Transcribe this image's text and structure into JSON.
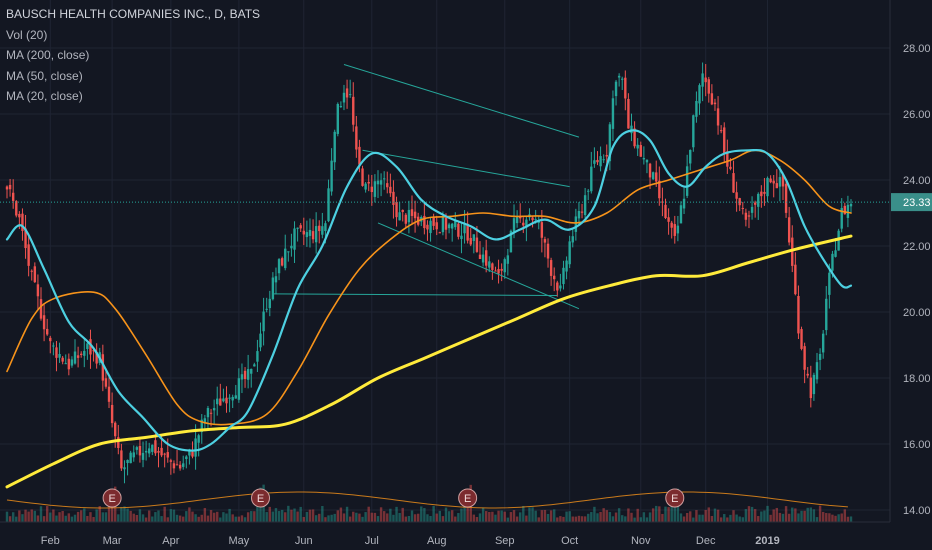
{
  "legend": {
    "title": "BAUSCH HEALTH COMPANIES INC., D, BATS",
    "vol": "Vol (20)",
    "ma200": "MA (200, close)",
    "ma50": "MA (50, close)",
    "ma20": "MA (20, close)"
  },
  "colors": {
    "background": "#131722",
    "grid": "#1f2433",
    "up": "#26a69a",
    "down": "#ef5350",
    "ma200": "#ffeb3b",
    "ma50": "#f7931a",
    "ma20": "#4dd0e1",
    "trendline": "#26a69a",
    "earnings_badge": "#7b2b2e"
  },
  "chart_data": {
    "type": "candlestick",
    "price_axis_ticks": [
      "28.00",
      "26.00",
      "24.00",
      "22.00",
      "20.00",
      "18.00",
      "16.00",
      "14.00"
    ],
    "ylim": [
      13.8,
      28.9
    ],
    "last_price": "23.33",
    "x_ticks": [
      "Feb",
      "Mar",
      "Apr",
      "May",
      "Jun",
      "Jul",
      "Aug",
      "Sep",
      "Oct",
      "Nov",
      "Dec",
      "2019"
    ],
    "price_anchors": [
      {
        "d": 0,
        "p": 23.8
      },
      {
        "d": 4,
        "p": 22.8
      },
      {
        "d": 8,
        "p": 21.0
      },
      {
        "d": 14,
        "p": 19.0
      },
      {
        "d": 20,
        "p": 18.4
      },
      {
        "d": 26,
        "p": 18.9
      },
      {
        "d": 30,
        "p": 18.6
      },
      {
        "d": 34,
        "p": 16.6
      },
      {
        "d": 37,
        "p": 15.2
      },
      {
        "d": 41,
        "p": 15.6
      },
      {
        "d": 46,
        "p": 16.0
      },
      {
        "d": 52,
        "p": 15.5
      },
      {
        "d": 56,
        "p": 15.3
      },
      {
        "d": 60,
        "p": 15.8
      },
      {
        "d": 64,
        "p": 16.8
      },
      {
        "d": 70,
        "p": 17.4
      },
      {
        "d": 75,
        "p": 17.8
      },
      {
        "d": 79,
        "p": 18.1
      },
      {
        "d": 84,
        "p": 20.3
      },
      {
        "d": 88,
        "p": 21.4
      },
      {
        "d": 93,
        "p": 22.3
      },
      {
        "d": 100,
        "p": 22.4
      },
      {
        "d": 103,
        "p": 22.7
      },
      {
        "d": 106,
        "p": 25.7
      },
      {
        "d": 109,
        "p": 26.8
      },
      {
        "d": 111,
        "p": 26.5
      },
      {
        "d": 113,
        "p": 24.7
      },
      {
        "d": 116,
        "p": 23.7
      },
      {
        "d": 121,
        "p": 24.0
      },
      {
        "d": 127,
        "p": 22.9
      },
      {
        "d": 133,
        "p": 22.8
      },
      {
        "d": 138,
        "p": 22.7
      },
      {
        "d": 143,
        "p": 22.6
      },
      {
        "d": 149,
        "p": 22.4
      },
      {
        "d": 154,
        "p": 21.7
      },
      {
        "d": 159,
        "p": 21.0
      },
      {
        "d": 164,
        "p": 22.6
      },
      {
        "d": 169,
        "p": 23.0
      },
      {
        "d": 172,
        "p": 22.6
      },
      {
        "d": 176,
        "p": 21.3
      },
      {
        "d": 179,
        "p": 20.6
      },
      {
        "d": 182,
        "p": 22.1
      },
      {
        "d": 186,
        "p": 23.2
      },
      {
        "d": 190,
        "p": 24.5
      },
      {
        "d": 194,
        "p": 24.9
      },
      {
        "d": 197,
        "p": 27.2
      },
      {
        "d": 199,
        "p": 27.0
      },
      {
        "d": 201,
        "p": 25.6
      },
      {
        "d": 205,
        "p": 24.8
      },
      {
        "d": 209,
        "p": 24.0
      },
      {
        "d": 213,
        "p": 22.9
      },
      {
        "d": 216,
        "p": 22.1
      },
      {
        "d": 219,
        "p": 23.6
      },
      {
        "d": 222,
        "p": 25.8
      },
      {
        "d": 225,
        "p": 27.2
      },
      {
        "d": 229,
        "p": 26.3
      },
      {
        "d": 232,
        "p": 24.8
      },
      {
        "d": 236,
        "p": 23.5
      },
      {
        "d": 239,
        "p": 22.6
      },
      {
        "d": 243,
        "p": 23.4
      },
      {
        "d": 247,
        "p": 24.1
      },
      {
        "d": 251,
        "p": 23.8
      },
      {
        "d": 253,
        "p": 22.2
      },
      {
        "d": 256,
        "p": 19.6
      },
      {
        "d": 258,
        "p": 18.4
      },
      {
        "d": 260,
        "p": 17.6
      },
      {
        "d": 263,
        "p": 18.6
      },
      {
        "d": 265,
        "p": 20.4
      },
      {
        "d": 268,
        "p": 22.1
      },
      {
        "d": 270,
        "p": 23.0
      },
      {
        "d": 273,
        "p": 23.33
      }
    ],
    "ma_anchors": {
      "ma200": [
        {
          "d": 0,
          "p": 14.7
        },
        {
          "d": 15,
          "p": 15.4
        },
        {
          "d": 30,
          "p": 16.0
        },
        {
          "d": 45,
          "p": 16.2
        },
        {
          "d": 60,
          "p": 16.4
        },
        {
          "d": 75,
          "p": 16.5
        },
        {
          "d": 90,
          "p": 16.6
        },
        {
          "d": 105,
          "p": 17.2
        },
        {
          "d": 120,
          "p": 18.0
        },
        {
          "d": 135,
          "p": 18.6
        },
        {
          "d": 150,
          "p": 19.2
        },
        {
          "d": 165,
          "p": 19.8
        },
        {
          "d": 180,
          "p": 20.4
        },
        {
          "d": 195,
          "p": 20.8
        },
        {
          "d": 210,
          "p": 21.1
        },
        {
          "d": 225,
          "p": 21.1
        },
        {
          "d": 240,
          "p": 21.5
        },
        {
          "d": 255,
          "p": 21.9
        },
        {
          "d": 273,
          "p": 22.3
        }
      ],
      "ma50": [
        {
          "d": 0,
          "p": 18.2
        },
        {
          "d": 8,
          "p": 19.8
        },
        {
          "d": 15,
          "p": 20.4
        },
        {
          "d": 28,
          "p": 20.6
        },
        {
          "d": 35,
          "p": 20.1
        },
        {
          "d": 45,
          "p": 18.7
        },
        {
          "d": 55,
          "p": 17.2
        },
        {
          "d": 62,
          "p": 16.7
        },
        {
          "d": 72,
          "p": 16.6
        },
        {
          "d": 84,
          "p": 16.9
        },
        {
          "d": 94,
          "p": 18.2
        },
        {
          "d": 104,
          "p": 19.9
        },
        {
          "d": 114,
          "p": 21.3
        },
        {
          "d": 124,
          "p": 22.2
        },
        {
          "d": 134,
          "p": 22.8
        },
        {
          "d": 144,
          "p": 22.9
        },
        {
          "d": 154,
          "p": 23.0
        },
        {
          "d": 164,
          "p": 22.9
        },
        {
          "d": 174,
          "p": 22.9
        },
        {
          "d": 184,
          "p": 22.7
        },
        {
          "d": 194,
          "p": 23.0
        },
        {
          "d": 204,
          "p": 23.7
        },
        {
          "d": 214,
          "p": 24.0
        },
        {
          "d": 224,
          "p": 24.3
        },
        {
          "d": 234,
          "p": 24.6
        },
        {
          "d": 242,
          "p": 24.9
        },
        {
          "d": 250,
          "p": 24.6
        },
        {
          "d": 258,
          "p": 24.0
        },
        {
          "d": 266,
          "p": 23.2
        },
        {
          "d": 273,
          "p": 23.0
        }
      ],
      "ma20": [
        {
          "d": 0,
          "p": 22.2
        },
        {
          "d": 5,
          "p": 22.6
        },
        {
          "d": 12,
          "p": 21.3
        },
        {
          "d": 20,
          "p": 19.7
        },
        {
          "d": 28,
          "p": 18.9
        },
        {
          "d": 36,
          "p": 17.6
        },
        {
          "d": 44,
          "p": 16.8
        },
        {
          "d": 52,
          "p": 16.0
        },
        {
          "d": 60,
          "p": 15.8
        },
        {
          "d": 66,
          "p": 16.0
        },
        {
          "d": 72,
          "p": 16.5
        },
        {
          "d": 78,
          "p": 17.0
        },
        {
          "d": 86,
          "p": 18.7
        },
        {
          "d": 94,
          "p": 20.7
        },
        {
          "d": 102,
          "p": 22.0
        },
        {
          "d": 110,
          "p": 23.8
        },
        {
          "d": 118,
          "p": 24.8
        },
        {
          "d": 126,
          "p": 24.4
        },
        {
          "d": 134,
          "p": 23.4
        },
        {
          "d": 142,
          "p": 22.9
        },
        {
          "d": 150,
          "p": 22.6
        },
        {
          "d": 158,
          "p": 22.2
        },
        {
          "d": 166,
          "p": 22.5
        },
        {
          "d": 174,
          "p": 22.8
        },
        {
          "d": 182,
          "p": 22.5
        },
        {
          "d": 190,
          "p": 23.2
        },
        {
          "d": 196,
          "p": 25.0
        },
        {
          "d": 202,
          "p": 25.5
        },
        {
          "d": 208,
          "p": 25.2
        },
        {
          "d": 214,
          "p": 24.2
        },
        {
          "d": 220,
          "p": 23.8
        },
        {
          "d": 226,
          "p": 24.4
        },
        {
          "d": 232,
          "p": 24.8
        },
        {
          "d": 240,
          "p": 24.9
        },
        {
          "d": 246,
          "p": 24.8
        },
        {
          "d": 252,
          "p": 24.0
        },
        {
          "d": 258,
          "p": 22.6
        },
        {
          "d": 264,
          "p": 21.6
        },
        {
          "d": 270,
          "p": 20.8
        },
        {
          "d": 273,
          "p": 20.8
        }
      ]
    },
    "trendlines": [
      {
        "d1": 109,
        "p1": 27.5,
        "d2": 185,
        "p2": 25.3
      },
      {
        "d1": 115,
        "p1": 24.9,
        "d2": 182,
        "p2": 23.8
      },
      {
        "d1": 120,
        "p1": 22.7,
        "d2": 185,
        "p2": 20.1
      },
      {
        "d1": 86,
        "p1": 20.55,
        "d2": 178,
        "p2": 20.5
      }
    ],
    "earnings_days": [
      34,
      82,
      149,
      216
    ],
    "x_tick_days": [
      14,
      34,
      53,
      75,
      96,
      118,
      139,
      161,
      182,
      205,
      226,
      246
    ],
    "volume_base_ratio": 0.13
  }
}
